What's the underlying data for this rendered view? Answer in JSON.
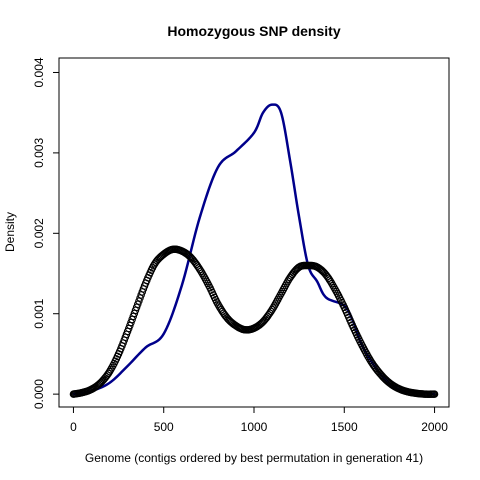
{
  "chart_data": {
    "type": "line",
    "title": "Homozygous SNP density",
    "xlabel": "Genome (contigs ordered by best permutation in generation 41)",
    "ylabel": "Density",
    "xlim": [
      -80,
      2080
    ],
    "ylim": [
      -0.00016,
      0.00418
    ],
    "xticks": [
      0,
      500,
      1000,
      1500,
      2000
    ],
    "xtick_labels": [
      "0",
      "500",
      "1000",
      "1500",
      "2000"
    ],
    "yticks": [
      0.0,
      0.001,
      0.002,
      0.003,
      0.004
    ],
    "ytick_labels": [
      "0.000",
      "0.001",
      "0.002",
      "0.003",
      "0.004"
    ],
    "grid": false,
    "legend": "none",
    "series": [
      {
        "style": "line",
        "color": "#00008B",
        "x": [
          0,
          100,
          200,
          300,
          400,
          500,
          600,
          700,
          800,
          900,
          1000,
          1050,
          1100,
          1150,
          1200,
          1250,
          1300,
          1350,
          1400,
          1500,
          1550,
          1600,
          1700,
          1800,
          1900,
          2000
        ],
        "y": [
          0.0,
          4e-05,
          0.00014,
          0.00035,
          0.00058,
          0.00075,
          0.00135,
          0.0022,
          0.00282,
          0.00302,
          0.00325,
          0.0035,
          0.0036,
          0.0035,
          0.0029,
          0.0022,
          0.0016,
          0.0014,
          0.0012,
          0.0011,
          0.0009,
          0.0006,
          0.00025,
          6e-05,
          2e-05,
          0.0
        ]
      },
      {
        "style": "points",
        "color": "#000000",
        "x": [
          0,
          50,
          100,
          150,
          200,
          250,
          300,
          350,
          400,
          450,
          500,
          550,
          600,
          650,
          700,
          750,
          800,
          850,
          900,
          950,
          1000,
          1050,
          1100,
          1150,
          1200,
          1250,
          1300,
          1350,
          1400,
          1450,
          1500,
          1550,
          1600,
          1650,
          1700,
          1750,
          1800,
          1850,
          1900,
          1950,
          2000
        ],
        "y": [
          0.0,
          2e-05,
          6e-05,
          0.00014,
          0.00028,
          0.0005,
          0.00078,
          0.00108,
          0.00138,
          0.00162,
          0.00174,
          0.0018,
          0.00178,
          0.0017,
          0.00155,
          0.00135,
          0.00112,
          0.00095,
          0.00085,
          0.0008,
          0.00082,
          0.0009,
          0.00105,
          0.00125,
          0.00145,
          0.00158,
          0.0016,
          0.00158,
          0.00148,
          0.0013,
          0.00108,
          0.00083,
          0.0006,
          0.0004,
          0.00025,
          0.00014,
          7e-05,
          3e-05,
          1e-05,
          0.0,
          0.0
        ]
      }
    ]
  }
}
